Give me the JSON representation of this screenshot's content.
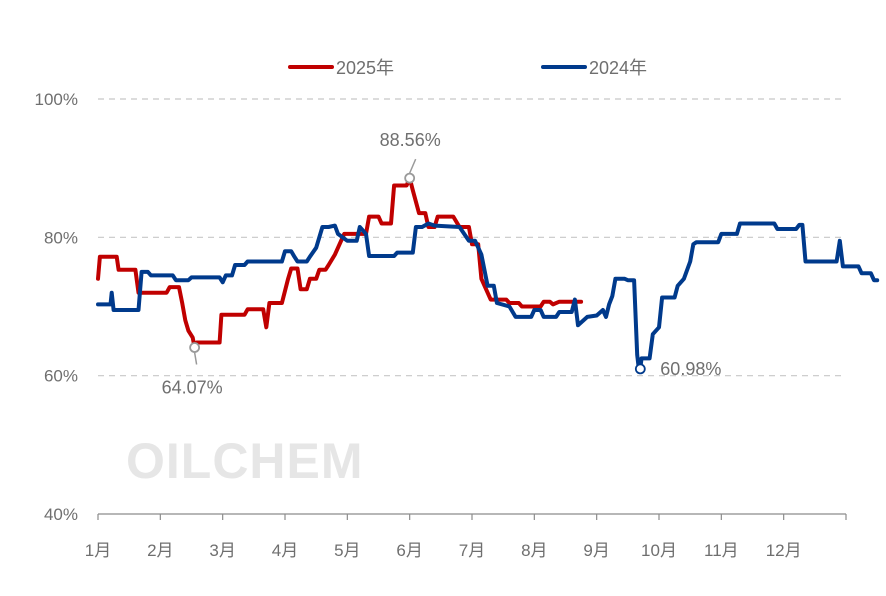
{
  "chart_data": {
    "type": "line",
    "title": "",
    "xlabel": "",
    "ylabel": "",
    "x_ticks": [
      "1月",
      "2月",
      "3月",
      "4月",
      "5月",
      "6月",
      "7月",
      "8月",
      "9月",
      "10月",
      "11月",
      "12月"
    ],
    "y_ticks": [
      "40%",
      "60%",
      "80%",
      "100%"
    ],
    "ylim": [
      40,
      100
    ],
    "grid": "horizontal dashed",
    "legend_position": "top-center",
    "watermark": "OILCHEM",
    "series": [
      {
        "name": "2025年",
        "color": "#c00000",
        "points": [
          [
            1.0,
            74
          ],
          [
            1.03,
            77.2
          ],
          [
            1.3,
            77.2
          ],
          [
            1.33,
            75.3
          ],
          [
            1.6,
            75.3
          ],
          [
            1.65,
            72
          ],
          [
            2.1,
            72
          ],
          [
            2.15,
            72.8
          ],
          [
            2.3,
            72.8
          ],
          [
            2.35,
            70.5
          ],
          [
            2.4,
            68
          ],
          [
            2.45,
            66.5
          ],
          [
            2.52,
            65.5
          ],
          [
            2.55,
            64.07
          ],
          [
            2.58,
            64.8
          ],
          [
            2.95,
            64.8
          ],
          [
            2.98,
            68.8
          ],
          [
            3.35,
            68.8
          ],
          [
            3.4,
            69.6
          ],
          [
            3.65,
            69.6
          ],
          [
            3.7,
            67
          ],
          [
            3.75,
            70.5
          ],
          [
            3.95,
            70.5
          ],
          [
            4.05,
            74
          ],
          [
            4.1,
            75.5
          ],
          [
            4.2,
            75.5
          ],
          [
            4.25,
            72.5
          ],
          [
            4.35,
            72.5
          ],
          [
            4.4,
            74
          ],
          [
            4.5,
            74
          ],
          [
            4.55,
            75.3
          ],
          [
            4.65,
            75.3
          ],
          [
            4.7,
            76
          ],
          [
            4.8,
            77.5
          ],
          [
            4.85,
            78.5
          ],
          [
            4.95,
            80.5
          ],
          [
            5.3,
            80.5
          ],
          [
            5.35,
            83
          ],
          [
            5.5,
            83
          ],
          [
            5.55,
            82
          ],
          [
            5.7,
            82
          ],
          [
            5.75,
            87.5
          ],
          [
            5.95,
            87.5
          ],
          [
            6.0,
            88.56
          ],
          [
            6.05,
            86.8
          ],
          [
            6.15,
            83.5
          ],
          [
            6.25,
            83.5
          ],
          [
            6.3,
            81.5
          ],
          [
            6.4,
            81.5
          ],
          [
            6.45,
            83
          ],
          [
            6.7,
            83
          ],
          [
            6.8,
            81.5
          ],
          [
            6.95,
            81.5
          ],
          [
            7.0,
            79
          ],
          [
            7.1,
            79
          ],
          [
            7.15,
            74
          ],
          [
            7.3,
            71
          ],
          [
            7.55,
            71
          ],
          [
            7.6,
            70.5
          ],
          [
            7.75,
            70.5
          ],
          [
            7.8,
            70
          ],
          [
            8.1,
            70
          ],
          [
            8.15,
            70.7
          ],
          [
            8.25,
            70.7
          ],
          [
            8.3,
            70.3
          ],
          [
            8.4,
            70.7
          ],
          [
            8.75,
            70.7
          ]
        ]
      },
      {
        "name": "2024年",
        "color": "#003a8c",
        "points": [
          [
            1.0,
            70.3
          ],
          [
            1.2,
            70.3
          ],
          [
            1.22,
            72
          ],
          [
            1.25,
            69.5
          ],
          [
            1.65,
            69.5
          ],
          [
            1.7,
            75
          ],
          [
            1.8,
            75
          ],
          [
            1.85,
            74.5
          ],
          [
            2.2,
            74.5
          ],
          [
            2.25,
            73.8
          ],
          [
            2.45,
            73.8
          ],
          [
            2.5,
            74.2
          ],
          [
            2.95,
            74.2
          ],
          [
            3.0,
            73.5
          ],
          [
            3.05,
            74.5
          ],
          [
            3.15,
            74.5
          ],
          [
            3.2,
            76
          ],
          [
            3.35,
            76
          ],
          [
            3.4,
            76.5
          ],
          [
            3.95,
            76.5
          ],
          [
            4.0,
            78
          ],
          [
            4.1,
            78
          ],
          [
            4.15,
            77.2
          ],
          [
            4.2,
            76.5
          ],
          [
            4.35,
            76.5
          ],
          [
            4.4,
            77.2
          ],
          [
            4.5,
            78.5
          ],
          [
            4.6,
            81.5
          ],
          [
            4.7,
            81.5
          ],
          [
            4.8,
            81.7
          ],
          [
            4.85,
            80.5
          ],
          [
            5.0,
            79.5
          ],
          [
            5.15,
            79.5
          ],
          [
            5.2,
            81.5
          ],
          [
            5.3,
            80.5
          ],
          [
            5.35,
            77.3
          ],
          [
            5.75,
            77.3
          ],
          [
            5.8,
            77.8
          ],
          [
            6.05,
            77.8
          ],
          [
            6.1,
            81.5
          ],
          [
            6.2,
            81.5
          ],
          [
            6.3,
            82
          ],
          [
            6.4,
            81.7
          ],
          [
            6.8,
            81.5
          ],
          [
            6.95,
            79.5
          ],
          [
            7.05,
            79.5
          ],
          [
            7.15,
            77.5
          ],
          [
            7.25,
            73
          ],
          [
            7.35,
            73
          ],
          [
            7.4,
            70.5
          ],
          [
            7.6,
            70
          ],
          [
            7.7,
            68.5
          ],
          [
            7.95,
            68.5
          ],
          [
            8.0,
            69.5
          ],
          [
            8.1,
            69.5
          ],
          [
            8.15,
            68.5
          ],
          [
            8.35,
            68.5
          ],
          [
            8.4,
            69.2
          ],
          [
            8.6,
            69.2
          ],
          [
            8.65,
            71
          ],
          [
            8.7,
            67.3
          ],
          [
            8.85,
            68.5
          ],
          [
            9.0,
            68.7
          ],
          [
            9.1,
            69.5
          ],
          [
            9.15,
            68.5
          ],
          [
            9.2,
            70.3
          ],
          [
            9.25,
            71.5
          ],
          [
            9.3,
            74
          ],
          [
            9.45,
            74
          ],
          [
            9.5,
            73.8
          ],
          [
            9.6,
            73.8
          ],
          [
            9.65,
            63
          ],
          [
            9.67,
            61.5
          ],
          [
            9.7,
            60.98
          ],
          [
            9.72,
            62.5
          ],
          [
            9.85,
            62.5
          ],
          [
            9.9,
            66
          ],
          [
            10.0,
            67
          ],
          [
            10.05,
            71.3
          ],
          [
            10.25,
            71.3
          ],
          [
            10.3,
            73
          ],
          [
            10.4,
            74
          ],
          [
            10.5,
            76.5
          ],
          [
            10.55,
            79
          ],
          [
            10.6,
            79.3
          ],
          [
            10.95,
            79.3
          ],
          [
            11.0,
            80.5
          ],
          [
            11.25,
            80.5
          ],
          [
            11.3,
            82
          ],
          [
            11.85,
            82
          ],
          [
            11.9,
            81.2
          ],
          [
            12.2,
            81.2
          ],
          [
            12.25,
            81.8
          ],
          [
            12.3,
            81.8
          ],
          [
            12.35,
            76.5
          ],
          [
            12.85,
            76.5
          ],
          [
            12.9,
            79.5
          ],
          [
            12.95,
            75.8
          ],
          [
            13.2,
            75.8
          ],
          [
            13.25,
            74.8
          ],
          [
            13.4,
            74.8
          ],
          [
            13.45,
            73.8
          ],
          [
            13.5,
            73.8
          ]
        ]
      }
    ],
    "annotations": [
      {
        "series": "2025年",
        "label": "88.56%",
        "x": 6.0,
        "y": 88.56,
        "position": "above-left"
      },
      {
        "series": "2025年",
        "label": "64.07%",
        "x": 2.55,
        "y": 64.07,
        "position": "below"
      },
      {
        "series": "2024年",
        "label": "60.98%",
        "x": 9.7,
        "y": 60.98,
        "position": "right"
      }
    ]
  }
}
